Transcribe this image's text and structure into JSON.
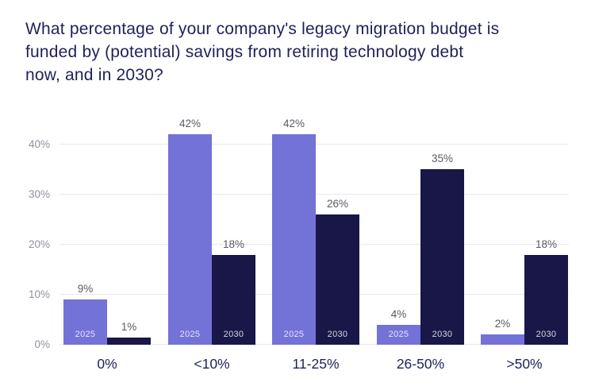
{
  "title": "What percentage of your company's legacy migration budget is funded by (potential) savings from retiring technology debt now, and in 2030?",
  "colors": {
    "series_2025": "#7372d7",
    "series_2030": "#191648",
    "title_text": "#1f2158",
    "axis_tick_text": "#90909a",
    "value_label_text": "#5a5a64",
    "category_label_text": "#1f2158",
    "gridline": "#e8e8ec",
    "bar_inner_label_text": "rgba(255,255,255,0.82)",
    "background": "#ffffff"
  },
  "chart_data": {
    "type": "bar",
    "categories": [
      "0%",
      "<10%",
      "11-25%",
      "26-50%",
      ">50%"
    ],
    "series": [
      {
        "name": "2025",
        "values": [
          9,
          42,
          42,
          4,
          2
        ]
      },
      {
        "name": "2030",
        "values": [
          1,
          18,
          26,
          35,
          18
        ]
      }
    ],
    "value_labels": [
      [
        "9%",
        "1%"
      ],
      [
        "42%",
        "18%"
      ],
      [
        "42%",
        "26%"
      ],
      [
        "4%",
        "35%"
      ],
      [
        "2%",
        "18%"
      ]
    ],
    "inner_bar_labels": [
      [
        "2025",
        ""
      ],
      [
        "2025",
        "2030"
      ],
      [
        "2025",
        "2030"
      ],
      [
        "2025",
        "2030"
      ],
      [
        "",
        "2030"
      ]
    ],
    "y_ticks": [
      "0%",
      "10%",
      "20%",
      "30%",
      "40%"
    ],
    "ylim": [
      0,
      46.7
    ],
    "grid": true,
    "legend_position": "inside-bars",
    "xlabel": "",
    "ylabel": ""
  }
}
